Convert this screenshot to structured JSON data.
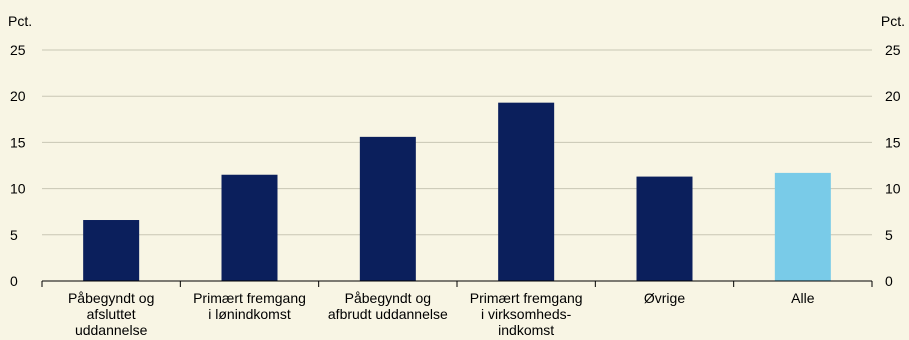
{
  "chart_data": {
    "type": "bar",
    "title": "",
    "y_unit_left": "Pct.",
    "y_unit_right": "Pct.",
    "ylim": [
      0,
      25
    ],
    "yticks": [
      0,
      5,
      10,
      15,
      20,
      25
    ],
    "grid": true,
    "categories": [
      [
        "Påbegyndt og",
        "afsluttet",
        "uddannelse"
      ],
      [
        "Primært fremgang",
        "i lønindkomst"
      ],
      [
        "Påbegyndt og",
        "afbrudt uddannelse"
      ],
      [
        "Primært fremgang",
        "i virksomheds-",
        "indkomst"
      ],
      [
        "Øvrige"
      ],
      [
        "Alle"
      ]
    ],
    "values": [
      6.6,
      11.5,
      15.6,
      19.3,
      11.3,
      11.7
    ],
    "bar_colors": [
      "#0b1f5c",
      "#0b1f5c",
      "#0b1f5c",
      "#0b1f5c",
      "#0b1f5c",
      "#79cbe8"
    ]
  },
  "colors": {
    "background": "#f8f5e4",
    "grid": "#c9c6b4",
    "axis": "#000000"
  }
}
